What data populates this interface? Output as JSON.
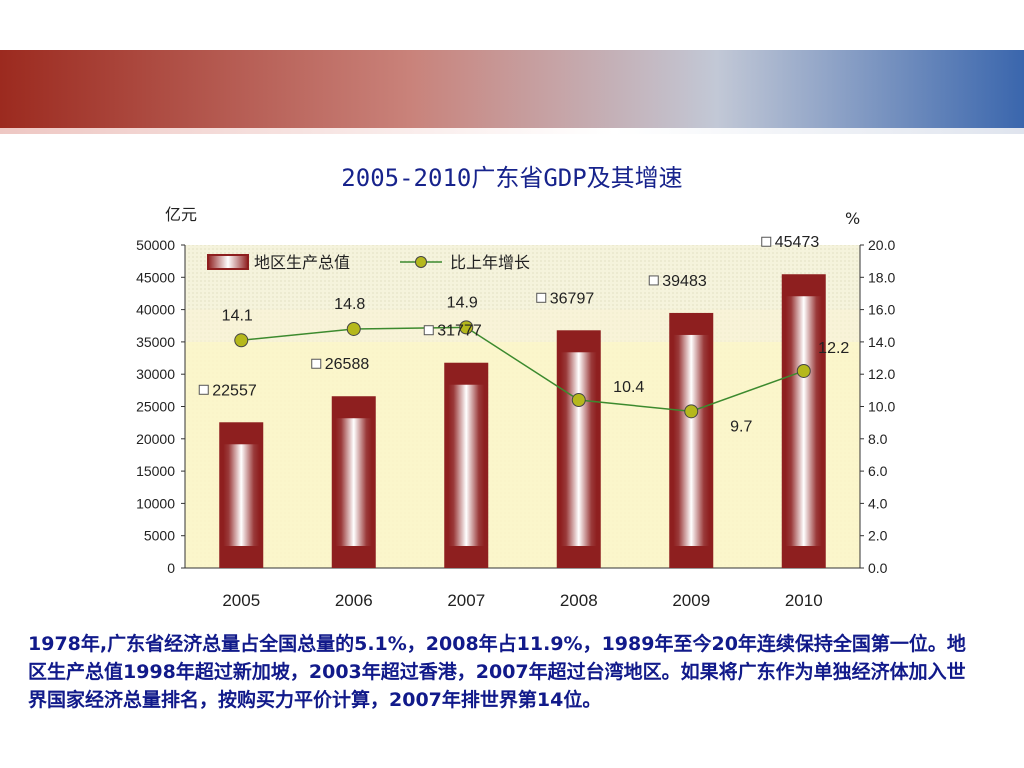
{
  "chart_data": {
    "type": "bar",
    "title": "2005-2010广东省GDP及其增速",
    "categories": [
      "2005",
      "2006",
      "2007",
      "2008",
      "2009",
      "2010"
    ],
    "series": [
      {
        "name": "地区生产总值",
        "type": "bar",
        "axis": "left",
        "values": [
          22557,
          26588,
          31777,
          36797,
          39483,
          45473
        ],
        "color": "#8e1f1f"
      },
      {
        "name": "比上年增长",
        "type": "line",
        "axis": "right",
        "values": [
          14.1,
          14.8,
          14.9,
          10.4,
          9.7,
          12.2
        ],
        "color": "#3c8a2e",
        "marker_color": "#b5b81c"
      }
    ],
    "left_axis": {
      "label": "亿元",
      "range": [
        0,
        50000
      ],
      "ticks": [
        "0",
        "5000",
        "10000",
        "15000",
        "20000",
        "25000",
        "30000",
        "35000",
        "40000",
        "45000",
        "50000"
      ]
    },
    "right_axis": {
      "label": "%",
      "range": [
        0,
        20
      ],
      "ticks": [
        "0.0",
        "2.0",
        "4.0",
        "6.0",
        "8.0",
        "10.0",
        "12.0",
        "14.0",
        "16.0",
        "18.0",
        "20.0"
      ]
    },
    "bar_labels": [
      "22557",
      "26588",
      "31777",
      "36797",
      "39483",
      "45473"
    ],
    "line_labels": [
      "14.1",
      "14.8",
      "14.9",
      "10.4",
      "9.7",
      "12.2"
    ],
    "legend_position": "top-left",
    "grid": false
  },
  "paragraph": "1978年,广东省经济总量占全国总量的5.1%，2008年占11.9%，1989年至今20年连续保持全国第一位。地区生产总值1998年超过新加坡，2003年超过香港，2007年超过台湾地区。如果将广东作为单独经济体加入世界国家经济总量排名，按购买力平价计算，2007年排世界第14位。"
}
